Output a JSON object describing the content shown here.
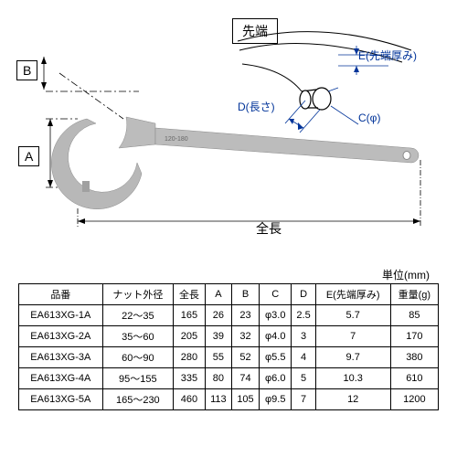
{
  "diagram": {
    "label_A": "A",
    "label_B": "B",
    "label_C": "C(φ)",
    "label_D": "D(長さ)",
    "label_E": "E(先端厚み)",
    "detail_title": "先端",
    "total_length": "全長",
    "unit": "単位(mm)",
    "colors": {
      "label_blue": "#003399",
      "line": "#000",
      "dashdot": "#000"
    }
  },
  "table": {
    "headers": [
      "品番",
      "ナット外径",
      "全長",
      "A",
      "B",
      "C",
      "D",
      "E(先端厚み)",
      "重量(g)"
    ],
    "rows": [
      [
        "EA613XG-1A",
        "22～35",
        "165",
        "26",
        "23",
        "φ3.0",
        "2.5",
        "5.7",
        "85"
      ],
      [
        "EA613XG-2A",
        "35～60",
        "205",
        "39",
        "32",
        "φ4.0",
        "3",
        "7",
        "170"
      ],
      [
        "EA613XG-3A",
        "60～90",
        "280",
        "55",
        "52",
        "φ5.5",
        "4",
        "9.7",
        "380"
      ],
      [
        "EA613XG-4A",
        "95～155",
        "335",
        "80",
        "74",
        "φ6.0",
        "5",
        "10.3",
        "610"
      ],
      [
        "EA613XG-5A",
        "165～230",
        "460",
        "113",
        "105",
        "φ9.5",
        "7",
        "12",
        "1200"
      ]
    ]
  }
}
